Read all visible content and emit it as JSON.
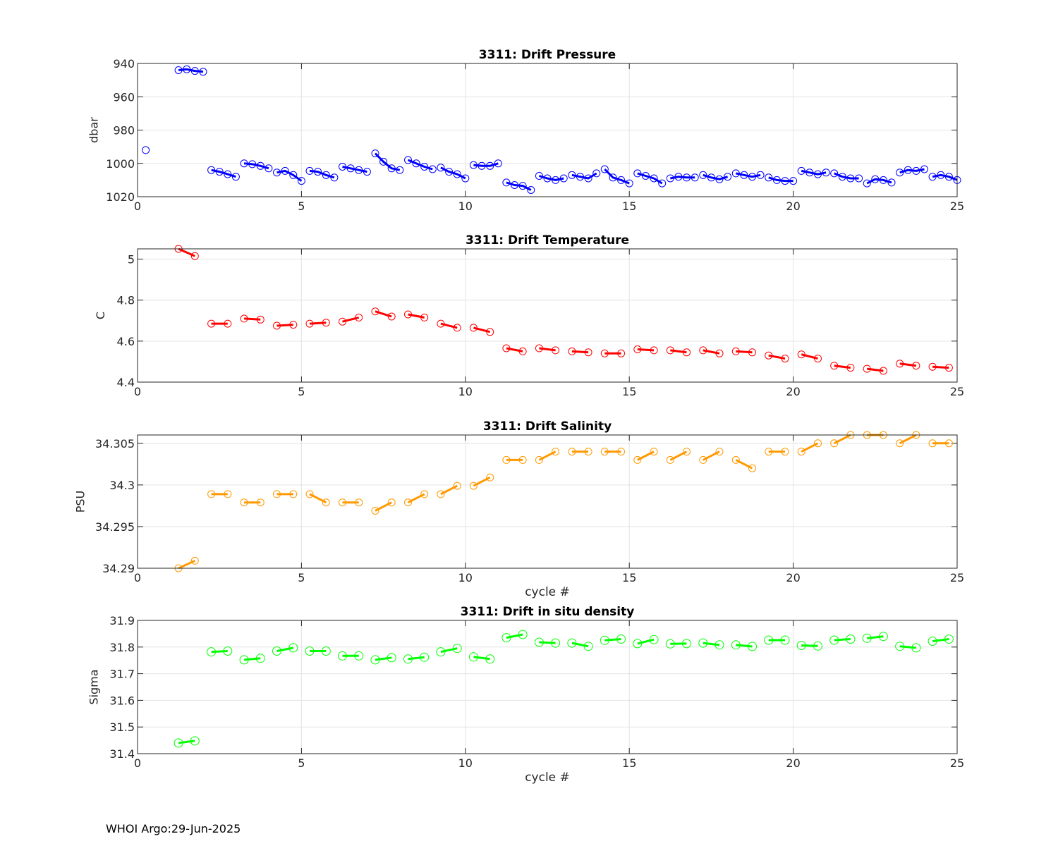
{
  "footer": {
    "text": "WHOI Argo:29-Jun-2025"
  },
  "chart_data": [
    {
      "type": "line",
      "title": "3311: Drift Pressure",
      "xlabel": "",
      "ylabel": "dbar",
      "xlim": [
        0,
        25
      ],
      "ylim": [
        940,
        1020
      ],
      "y_reversed": true,
      "xticks": [
        0,
        5,
        10,
        15,
        20,
        25
      ],
      "yticks": [
        940,
        960,
        980,
        1000,
        1020
      ],
      "ytick_labels": [
        "940",
        "960",
        "980",
        "1000",
        "1020"
      ],
      "grid": true,
      "color": "#0000ff",
      "marker_size": 5,
      "line_width": 3,
      "segments": [
        {
          "x": [
            0.25
          ],
          "y": [
            992
          ]
        },
        {
          "x": [
            1.25,
            1.5,
            1.75,
            2.0
          ],
          "y": [
            944,
            943.5,
            944.5,
            945
          ]
        },
        {
          "x": [
            2.25,
            2.5,
            2.75,
            3.0
          ],
          "y": [
            1004,
            1005,
            1006.5,
            1008
          ]
        },
        {
          "x": [
            3.25,
            3.5,
            3.75,
            4.0
          ],
          "y": [
            1000,
            1000.5,
            1001.5,
            1003
          ]
        },
        {
          "x": [
            4.25,
            4.5,
            4.75,
            5.0
          ],
          "y": [
            1005.5,
            1004.5,
            1007,
            1010.5
          ]
        },
        {
          "x": [
            5.25,
            5.5,
            5.75,
            6.0
          ],
          "y": [
            1004.5,
            1005,
            1007,
            1008.5
          ]
        },
        {
          "x": [
            6.25,
            6.5,
            6.75,
            7.0
          ],
          "y": [
            1002,
            1003,
            1004,
            1005
          ]
        },
        {
          "x": [
            7.25,
            7.5,
            7.75,
            8.0
          ],
          "y": [
            994,
            999,
            1003,
            1004
          ]
        },
        {
          "x": [
            8.25,
            8.5,
            8.75,
            9.0
          ],
          "y": [
            998,
            1000,
            1002,
            1003.5
          ]
        },
        {
          "x": [
            9.25,
            9.5,
            9.75,
            10.0
          ],
          "y": [
            1002.5,
            1005,
            1006.5,
            1009
          ]
        },
        {
          "x": [
            10.25,
            10.5,
            10.75,
            11.0
          ],
          "y": [
            1001,
            1001.5,
            1001.5,
            1000
          ]
        },
        {
          "x": [
            11.25,
            11.5,
            11.75,
            12.0
          ],
          "y": [
            1011.5,
            1013,
            1013.5,
            1016
          ]
        },
        {
          "x": [
            12.25,
            12.5,
            12.75,
            13.0
          ],
          "y": [
            1007.5,
            1009,
            1010,
            1009
          ]
        },
        {
          "x": [
            13.25,
            13.5,
            13.75,
            14.0
          ],
          "y": [
            1007,
            1008,
            1009,
            1006
          ]
        },
        {
          "x": [
            14.25,
            14.5,
            14.75,
            15.0
          ],
          "y": [
            1003.5,
            1008.5,
            1010,
            1012
          ]
        },
        {
          "x": [
            15.25,
            15.5,
            15.75,
            16.0
          ],
          "y": [
            1006,
            1007.5,
            1009,
            1012
          ]
        },
        {
          "x": [
            16.25,
            16.5,
            16.75,
            17.0
          ],
          "y": [
            1009,
            1008,
            1008.5,
            1008.5
          ]
        },
        {
          "x": [
            17.25,
            17.5,
            17.75,
            18.0
          ],
          "y": [
            1007,
            1008.5,
            1009.5,
            1008
          ]
        },
        {
          "x": [
            18.25,
            18.5,
            18.75,
            19.0
          ],
          "y": [
            1006,
            1007,
            1008,
            1007
          ]
        },
        {
          "x": [
            19.25,
            19.5,
            19.75,
            20.0
          ],
          "y": [
            1008.5,
            1010,
            1010.5,
            1010.5
          ]
        },
        {
          "x": [
            20.25,
            20.5,
            20.75,
            21.0
          ],
          "y": [
            1004.5,
            1005.5,
            1006.5,
            1005.5
          ]
        },
        {
          "x": [
            21.25,
            21.5,
            21.75,
            22.0
          ],
          "y": [
            1006,
            1008,
            1009,
            1009
          ]
        },
        {
          "x": [
            22.25,
            22.5,
            22.75,
            23.0
          ],
          "y": [
            1012,
            1009.5,
            1010,
            1011.5
          ]
        },
        {
          "x": [
            23.25,
            23.5,
            23.75,
            24.0
          ],
          "y": [
            1005.5,
            1004,
            1004.5,
            1003.5
          ]
        },
        {
          "x": [
            24.25,
            24.5,
            24.75,
            25.0
          ],
          "y": [
            1008,
            1007,
            1008,
            1010
          ]
        }
      ]
    },
    {
      "type": "line",
      "title": "3311: Drift Temperature",
      "xlabel": "",
      "ylabel": "C",
      "xlim": [
        0,
        25
      ],
      "ylim": [
        4.4,
        5.05
      ],
      "y_reversed": false,
      "xticks": [
        0,
        5,
        10,
        15,
        20,
        25
      ],
      "yticks": [
        4.4,
        4.6,
        4.8,
        5.0
      ],
      "ytick_labels": [
        "4.4",
        "4.6",
        "4.8",
        "5"
      ],
      "grid": true,
      "color": "#ff0000",
      "marker_size": 5,
      "line_width": 3,
      "segments": [
        {
          "x": [
            1.25,
            1.75
          ],
          "y": [
            5.05,
            5.015
          ]
        },
        {
          "x": [
            2.25,
            2.75
          ],
          "y": [
            4.685,
            4.685
          ]
        },
        {
          "x": [
            3.25,
            3.75
          ],
          "y": [
            4.71,
            4.705
          ]
        },
        {
          "x": [
            4.25,
            4.75
          ],
          "y": [
            4.675,
            4.68
          ]
        },
        {
          "x": [
            5.25,
            5.75
          ],
          "y": [
            4.685,
            4.69
          ]
        },
        {
          "x": [
            6.25,
            6.75
          ],
          "y": [
            4.695,
            4.715
          ]
        },
        {
          "x": [
            7.25,
            7.75
          ],
          "y": [
            4.745,
            4.72
          ]
        },
        {
          "x": [
            8.25,
            8.75
          ],
          "y": [
            4.73,
            4.715
          ]
        },
        {
          "x": [
            9.25,
            9.75
          ],
          "y": [
            4.685,
            4.665
          ]
        },
        {
          "x": [
            10.25,
            10.75
          ],
          "y": [
            4.665,
            4.645
          ]
        },
        {
          "x": [
            11.25,
            11.75
          ],
          "y": [
            4.565,
            4.55
          ]
        },
        {
          "x": [
            12.25,
            12.75
          ],
          "y": [
            4.565,
            4.555
          ]
        },
        {
          "x": [
            13.25,
            13.75
          ],
          "y": [
            4.55,
            4.545
          ]
        },
        {
          "x": [
            14.25,
            14.75
          ],
          "y": [
            4.54,
            4.54
          ]
        },
        {
          "x": [
            15.25,
            15.75
          ],
          "y": [
            4.56,
            4.555
          ]
        },
        {
          "x": [
            16.25,
            16.75
          ],
          "y": [
            4.555,
            4.545
          ]
        },
        {
          "x": [
            17.25,
            17.75
          ],
          "y": [
            4.555,
            4.54
          ]
        },
        {
          "x": [
            18.25,
            18.75
          ],
          "y": [
            4.55,
            4.545
          ]
        },
        {
          "x": [
            19.25,
            19.75
          ],
          "y": [
            4.53,
            4.515
          ]
        },
        {
          "x": [
            20.25,
            20.75
          ],
          "y": [
            4.535,
            4.515
          ]
        },
        {
          "x": [
            21.25,
            21.75
          ],
          "y": [
            4.48,
            4.47
          ]
        },
        {
          "x": [
            22.25,
            22.75
          ],
          "y": [
            4.465,
            4.455
          ]
        },
        {
          "x": [
            23.25,
            23.75
          ],
          "y": [
            4.49,
            4.48
          ]
        },
        {
          "x": [
            24.25,
            24.75
          ],
          "y": [
            4.475,
            4.47
          ]
        }
      ]
    },
    {
      "type": "line",
      "title": "3311: Drift Salinity",
      "xlabel": "cycle #",
      "ylabel": "PSU",
      "xlim": [
        0,
        25
      ],
      "ylim": [
        34.29,
        34.306
      ],
      "y_reversed": false,
      "xticks": [
        0,
        5,
        10,
        15,
        20,
        25
      ],
      "yticks": [
        34.29,
        34.295,
        34.3,
        34.305
      ],
      "ytick_labels": [
        "34.29",
        "34.295",
        "34.3",
        "34.305"
      ],
      "grid": true,
      "color": "#ff9900",
      "marker_size": 5,
      "line_width": 3,
      "segments": [
        {
          "x": [
            1.25,
            1.75
          ],
          "y": [
            34.29,
            34.2909
          ]
        },
        {
          "x": [
            2.25,
            2.75
          ],
          "y": [
            34.2989,
            34.2989
          ]
        },
        {
          "x": [
            3.25,
            3.75
          ],
          "y": [
            34.2979,
            34.2979
          ]
        },
        {
          "x": [
            4.25,
            4.75
          ],
          "y": [
            34.2989,
            34.2989
          ]
        },
        {
          "x": [
            5.25,
            5.75
          ],
          "y": [
            34.2989,
            34.2979
          ]
        },
        {
          "x": [
            6.25,
            6.75
          ],
          "y": [
            34.2979,
            34.2979
          ]
        },
        {
          "x": [
            7.25,
            7.75
          ],
          "y": [
            34.2969,
            34.2979
          ]
        },
        {
          "x": [
            8.25,
            8.75
          ],
          "y": [
            34.2979,
            34.2989
          ]
        },
        {
          "x": [
            9.25,
            9.75
          ],
          "y": [
            34.2989,
            34.2999
          ]
        },
        {
          "x": [
            10.25,
            10.75
          ],
          "y": [
            34.2999,
            34.3009
          ]
        },
        {
          "x": [
            11.25,
            11.75
          ],
          "y": [
            34.303,
            34.303
          ]
        },
        {
          "x": [
            12.25,
            12.75
          ],
          "y": [
            34.303,
            34.304
          ]
        },
        {
          "x": [
            13.25,
            13.75
          ],
          "y": [
            34.304,
            34.304
          ]
        },
        {
          "x": [
            14.25,
            14.75
          ],
          "y": [
            34.304,
            34.304
          ]
        },
        {
          "x": [
            15.25,
            15.75
          ],
          "y": [
            34.303,
            34.304
          ]
        },
        {
          "x": [
            16.25,
            16.75
          ],
          "y": [
            34.303,
            34.304
          ]
        },
        {
          "x": [
            17.25,
            17.75
          ],
          "y": [
            34.303,
            34.304
          ]
        },
        {
          "x": [
            18.25,
            18.75
          ],
          "y": [
            34.303,
            34.302
          ]
        },
        {
          "x": [
            19.25,
            19.75
          ],
          "y": [
            34.304,
            34.304
          ]
        },
        {
          "x": [
            20.25,
            20.75
          ],
          "y": [
            34.304,
            34.305
          ]
        },
        {
          "x": [
            21.25,
            21.75
          ],
          "y": [
            34.305,
            34.306
          ]
        },
        {
          "x": [
            22.25,
            22.75
          ],
          "y": [
            34.306,
            34.306
          ]
        },
        {
          "x": [
            23.25,
            23.75
          ],
          "y": [
            34.305,
            34.306
          ]
        },
        {
          "x": [
            24.25,
            24.75
          ],
          "y": [
            34.305,
            34.305
          ]
        }
      ]
    },
    {
      "type": "line",
      "title": "3311: Drift in situ density",
      "xlabel": "cycle #",
      "ylabel": "Sigma",
      "xlim": [
        0,
        25
      ],
      "ylim": [
        31.4,
        31.9
      ],
      "y_reversed": false,
      "xticks": [
        0,
        5,
        10,
        15,
        20,
        25
      ],
      "yticks": [
        31.4,
        31.5,
        31.6,
        31.7,
        31.8,
        31.9
      ],
      "ytick_labels": [
        "31.4",
        "31.5",
        "31.6",
        "31.7",
        "31.8",
        "31.9"
      ],
      "grid": true,
      "color": "#00ff00",
      "marker_size": 6,
      "line_width": 3,
      "segments": [
        {
          "x": [
            1.25,
            1.75
          ],
          "y": [
            31.44,
            31.448
          ]
        },
        {
          "x": [
            2.25,
            2.75
          ],
          "y": [
            31.782,
            31.785
          ]
        },
        {
          "x": [
            3.25,
            3.75
          ],
          "y": [
            31.752,
            31.758
          ]
        },
        {
          "x": [
            4.25,
            4.75
          ],
          "y": [
            31.785,
            31.797
          ]
        },
        {
          "x": [
            5.25,
            5.75
          ],
          "y": [
            31.785,
            31.785
          ]
        },
        {
          "x": [
            6.25,
            6.75
          ],
          "y": [
            31.767,
            31.767
          ]
        },
        {
          "x": [
            7.25,
            7.75
          ],
          "y": [
            31.752,
            31.76
          ]
        },
        {
          "x": [
            8.25,
            8.75
          ],
          "y": [
            31.755,
            31.762
          ]
        },
        {
          "x": [
            9.25,
            9.75
          ],
          "y": [
            31.782,
            31.795
          ]
        },
        {
          "x": [
            10.25,
            10.75
          ],
          "y": [
            31.763,
            31.755
          ]
        },
        {
          "x": [
            11.25,
            11.75
          ],
          "y": [
            31.835,
            31.847
          ]
        },
        {
          "x": [
            12.25,
            12.75
          ],
          "y": [
            31.818,
            31.815
          ]
        },
        {
          "x": [
            13.25,
            13.75
          ],
          "y": [
            31.815,
            31.803
          ]
        },
        {
          "x": [
            14.25,
            14.75
          ],
          "y": [
            31.825,
            31.83
          ]
        },
        {
          "x": [
            15.25,
            15.75
          ],
          "y": [
            31.813,
            31.828
          ]
        },
        {
          "x": [
            16.25,
            16.75
          ],
          "y": [
            31.812,
            31.813
          ]
        },
        {
          "x": [
            17.25,
            17.75
          ],
          "y": [
            31.815,
            31.808
          ]
        },
        {
          "x": [
            18.25,
            18.75
          ],
          "y": [
            31.808,
            31.802
          ]
        },
        {
          "x": [
            19.25,
            19.75
          ],
          "y": [
            31.826,
            31.826
          ]
        },
        {
          "x": [
            20.25,
            20.75
          ],
          "y": [
            31.806,
            31.804
          ]
        },
        {
          "x": [
            21.25,
            21.75
          ],
          "y": [
            31.826,
            31.83
          ]
        },
        {
          "x": [
            22.25,
            22.75
          ],
          "y": [
            31.833,
            31.84
          ]
        },
        {
          "x": [
            23.25,
            23.75
          ],
          "y": [
            31.803,
            31.797
          ]
        },
        {
          "x": [
            24.25,
            24.75
          ],
          "y": [
            31.822,
            31.83
          ]
        }
      ]
    }
  ]
}
